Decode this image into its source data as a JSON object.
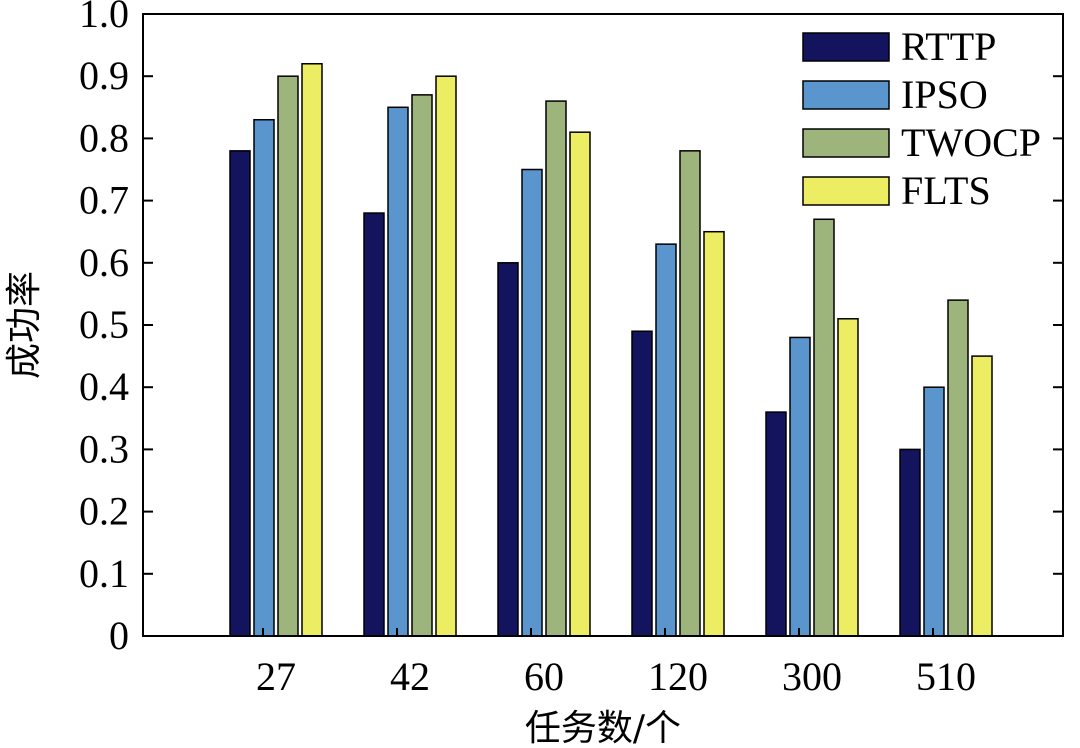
{
  "chart_data": {
    "type": "bar",
    "title": "",
    "xlabel": "任务数/个",
    "ylabel": "成功率",
    "categories": [
      "27",
      "42",
      "60",
      "120",
      "300",
      "510"
    ],
    "ylim": [
      0,
      1.0
    ],
    "yticks": [
      "0",
      "0.1",
      "0.2",
      "0.3",
      "0.4",
      "0.5",
      "0.6",
      "0.7",
      "0.8",
      "0.9",
      "1.0"
    ],
    "legend_position": "top-right",
    "grid": false,
    "series": [
      {
        "name": "RTTP",
        "color": "#13135e",
        "values": [
          0.78,
          0.68,
          0.6,
          0.49,
          0.36,
          0.3
        ]
      },
      {
        "name": "IPSO",
        "color": "#5b95ce",
        "values": [
          0.83,
          0.85,
          0.75,
          0.63,
          0.48,
          0.4
        ]
      },
      {
        "name": "TWOCP",
        "color": "#9db57c",
        "values": [
          0.9,
          0.87,
          0.86,
          0.78,
          0.67,
          0.54
        ]
      },
      {
        "name": "FLTS",
        "color": "#eded63",
        "values": [
          0.92,
          0.9,
          0.81,
          0.65,
          0.51,
          0.45
        ]
      }
    ]
  }
}
